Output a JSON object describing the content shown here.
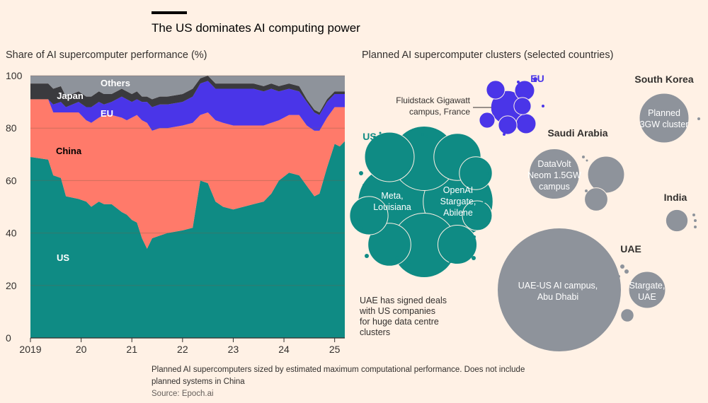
{
  "header": {
    "title": "The US dominates AI computing power",
    "left_subtitle": "Share of AI supercomputer performance (%)",
    "right_subtitle": "Planned AI supercomputer clusters (selected countries)"
  },
  "footer": {
    "note_line1": "Planned AI supercomputers sized by estimated maximum computational performance. Does not include",
    "note_line2": "planned systems in China",
    "source": "Source: Epoch.ai"
  },
  "colors": {
    "us": "#0f8b84",
    "china": "#ff7a6a",
    "eu": "#4a35e8",
    "japan": "#3a3a3e",
    "others": "#8e939b",
    "bubble_grey": "#8e939b",
    "grid": "#e0d3c7",
    "bg": "#fff1e5"
  },
  "chart_data": [
    {
      "type": "area",
      "stacked": true,
      "title": "Share of AI supercomputer performance (%)",
      "xlabel": "",
      "ylabel": "",
      "ylim": [
        0,
        100
      ],
      "yticks": [
        0,
        20,
        40,
        60,
        80,
        100
      ],
      "xlim": [
        2019.0,
        2025.2
      ],
      "xticks": [
        2019,
        2020,
        2021,
        2022,
        2023,
        2024,
        2025
      ],
      "xtick_labels": [
        "2019",
        "20",
        "21",
        "22",
        "23",
        "24",
        "25"
      ],
      "x": [
        2019.0,
        2019.35,
        2019.45,
        2019.6,
        2019.7,
        2019.95,
        2020.1,
        2020.2,
        2020.35,
        2020.45,
        2020.6,
        2020.8,
        2020.9,
        2021.0,
        2021.1,
        2021.2,
        2021.3,
        2021.4,
        2021.55,
        2021.7,
        2022.0,
        2022.2,
        2022.35,
        2022.5,
        2022.65,
        2022.8,
        2023.0,
        2023.2,
        2023.4,
        2023.6,
        2023.75,
        2023.9,
        2024.1,
        2024.3,
        2024.45,
        2024.6,
        2024.7,
        2024.85,
        2025.0,
        2025.1,
        2025.2
      ],
      "series": [
        {
          "name": "US",
          "values": [
            69,
            68,
            62,
            61,
            54,
            53,
            52,
            50,
            52,
            51,
            51,
            48,
            47,
            45,
            44,
            38,
            34,
            38,
            39,
            40,
            41,
            42,
            60,
            59,
            52,
            50,
            49,
            50,
            51,
            52,
            55,
            60,
            63,
            62,
            58,
            54,
            55,
            65,
            74,
            73,
            75
          ]
        },
        {
          "name": "China",
          "values": [
            22,
            23,
            24,
            25,
            32,
            33,
            31,
            32,
            32,
            34,
            34,
            36,
            36,
            39,
            41,
            45,
            48,
            41,
            41,
            40,
            40,
            40,
            25,
            27,
            31,
            32,
            32,
            31,
            30,
            29,
            27,
            23,
            22,
            23,
            23,
            25,
            24,
            19,
            14,
            15,
            13
          ]
        },
        {
          "name": "EU",
          "values": [
            0,
            0,
            3,
            4,
            2,
            4,
            5,
            6,
            6,
            4,
            5,
            8,
            8,
            6,
            6,
            7,
            8,
            9,
            9,
            9,
            9,
            10,
            12,
            12,
            12,
            13,
            14,
            14,
            14,
            13,
            13,
            11,
            10,
            9,
            9,
            7,
            6,
            6,
            5,
            5,
            5
          ]
        },
        {
          "name": "Japan",
          "values": [
            6,
            6,
            6,
            6,
            4,
            4,
            4,
            4,
            4,
            4,
            3,
            3,
            3,
            3,
            3,
            2,
            2,
            3,
            3,
            3,
            3,
            3,
            2,
            2,
            2,
            2,
            2,
            2,
            2,
            2,
            2,
            2,
            2,
            2,
            1,
            1,
            1,
            1,
            1,
            1,
            1
          ]
        },
        {
          "name": "Others",
          "values": [
            3,
            3,
            5,
            4,
            8,
            6,
            8,
            8,
            6,
            7,
            7,
            5,
            6,
            7,
            6,
            8,
            8,
            9,
            8,
            8,
            7,
            5,
            1,
            0,
            3,
            3,
            3,
            3,
            3,
            4,
            3,
            4,
            3,
            4,
            9,
            13,
            14,
            9,
            6,
            6,
            6
          ]
        }
      ],
      "labels": [
        "Others",
        "Japan",
        "EU",
        "China",
        "US"
      ]
    },
    {
      "type": "bubble",
      "title": "Planned AI supercomputer clusters (selected countries)",
      "groups": [
        {
          "name": "EU",
          "bubbles": [
            {
              "label": "Fluidstack Gigawatt campus, France",
              "value": 46
            },
            {
              "label": "",
              "value": 16
            },
            {
              "label": "",
              "value": 16
            },
            {
              "label": "",
              "value": 14
            },
            {
              "label": "",
              "value": 14
            },
            {
              "label": "",
              "value": 12
            },
            {
              "label": "",
              "value": 10
            }
          ]
        },
        {
          "name": "US",
          "bubbles": [
            {
              "label": "Meta, Louisiana",
              "value": 198
            },
            {
              "label": "OpenAI Stargate, Abilene",
              "value": 198
            },
            {
              "label": "",
              "value": 169
            },
            {
              "label": "",
              "value": 169
            },
            {
              "label": "",
              "value": 100
            },
            {
              "label": "",
              "value": 90
            },
            {
              "label": "",
              "value": 75
            },
            {
              "label": "",
              "value": 62
            },
            {
              "label": "",
              "value": 60
            },
            {
              "label": "",
              "value": 44
            },
            {
              "label": "",
              "value": 36
            }
          ]
        },
        {
          "name": "South Korea",
          "bubbles": [
            {
              "label": "Planned 3GW cluster",
              "value": 100
            }
          ]
        },
        {
          "name": "Saudi Arabia",
          "bubbles": [
            {
              "label": "DataVolt Neom 1.5GW campus",
              "value": 103
            },
            {
              "label": "",
              "value": 55
            },
            {
              "label": "",
              "value": 22
            }
          ]
        },
        {
          "name": "India",
          "bubbles": [
            {
              "label": "",
              "value": 20
            }
          ]
        },
        {
          "name": "UAE",
          "bubbles": [
            {
              "label": "UAE-US AI campus, Abu Dhabi",
              "value": 625
            },
            {
              "label": "Stargate, UAE",
              "value": 55
            },
            {
              "label": "",
              "value": 7
            }
          ]
        }
      ],
      "annotation": "UAE has signed deals with US companies for huge data centre clusters"
    }
  ]
}
